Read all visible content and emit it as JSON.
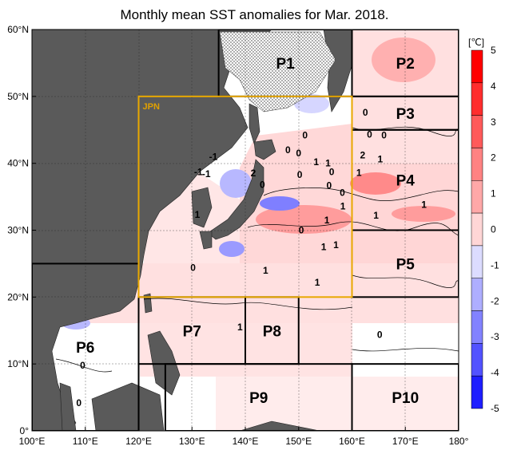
{
  "title": "Monthly mean SST anomalies for Mar. 2018.",
  "map": {
    "lon_range": [
      100,
      180
    ],
    "lat_range": [
      0,
      60
    ],
    "lon_ticks": [
      "100°E",
      "110°E",
      "120°E",
      "130°E",
      "140°E",
      "150°E",
      "160°E",
      "170°E",
      "180°"
    ],
    "lat_ticks": [
      "0°",
      "10°N",
      "20°N",
      "30°N",
      "40°N",
      "50°N",
      "60°N"
    ],
    "land_color": "#5a5a5a",
    "ocean_color": "#ffffff",
    "jpn_box_color": "#e8a800"
  },
  "regions": {
    "jpn": {
      "label": "JPN",
      "lon": [
        120,
        160
      ],
      "lat": [
        20,
        50
      ]
    },
    "areas": [
      {
        "label": "P1",
        "lon": [
          135,
          160
        ],
        "lat": [
          50,
          60
        ]
      },
      {
        "label": "P2",
        "lon": [
          160,
          180
        ],
        "lat": [
          50,
          60
        ]
      },
      {
        "label": "P3",
        "lon": [
          160,
          180
        ],
        "lat": [
          45,
          50
        ]
      },
      {
        "label": "P4",
        "lon": [
          160,
          180
        ],
        "lat": [
          30,
          45
        ]
      },
      {
        "label": "P5",
        "lon": [
          160,
          180
        ],
        "lat": [
          20,
          30
        ]
      },
      {
        "label": "P6",
        "lon": [
          100,
          120
        ],
        "lat": [
          0,
          25
        ]
      },
      {
        "label": "P7",
        "lon": [
          120,
          140
        ],
        "lat": [
          10,
          20
        ]
      },
      {
        "label": "P8",
        "lon": [
          140,
          150
        ],
        "lat": [
          10,
          20
        ]
      },
      {
        "label": "P9",
        "lon": [
          125,
          160
        ],
        "lat": [
          0,
          10
        ]
      },
      {
        "label": "P10",
        "lon": [
          160,
          180
        ],
        "lat": [
          0,
          10
        ]
      }
    ]
  },
  "contour_labels": [
    {
      "text": "-1",
      "lon": 134.0,
      "lat": 41.0
    },
    {
      "text": "-1",
      "lon": 131.2,
      "lat": 38.7
    },
    {
      "text": "-1",
      "lon": 132.7,
      "lat": 38.4
    },
    {
      "text": "0",
      "lon": 151.2,
      "lat": 44.2
    },
    {
      "text": "0",
      "lon": 148.0,
      "lat": 42.0
    },
    {
      "text": "0",
      "lon": 162.5,
      "lat": 47.6
    },
    {
      "text": "0",
      "lon": 163.3,
      "lat": 44.3
    },
    {
      "text": "0",
      "lon": 166.0,
      "lat": 44.2
    },
    {
      "text": "0",
      "lon": 150.0,
      "lat": 41.5
    },
    {
      "text": "0",
      "lon": 150.2,
      "lat": 38.3
    },
    {
      "text": "0",
      "lon": 143.2,
      "lat": 36.8
    },
    {
      "text": "0",
      "lon": 155.7,
      "lat": 36.7
    },
    {
      "text": "0",
      "lon": 156.2,
      "lat": 38.7
    },
    {
      "text": "0",
      "lon": 158.2,
      "lat": 35.6
    },
    {
      "text": "0",
      "lon": 150.5,
      "lat": 30.0
    },
    {
      "text": "0",
      "lon": 130.2,
      "lat": 24.4
    },
    {
      "text": "0",
      "lon": 109.5,
      "lat": 9.8
    },
    {
      "text": "0",
      "lon": 108.8,
      "lat": 4.2
    },
    {
      "text": "0",
      "lon": 165.2,
      "lat": 14.4
    },
    {
      "text": "2",
      "lon": 141.5,
      "lat": 38.5
    },
    {
      "text": "2",
      "lon": 162.0,
      "lat": 41.2
    },
    {
      "text": "1",
      "lon": 153.3,
      "lat": 40.2
    },
    {
      "text": "1",
      "lon": 155.5,
      "lat": 40.0
    },
    {
      "text": "1",
      "lon": 161.3,
      "lat": 38.6
    },
    {
      "text": "1",
      "lon": 165.3,
      "lat": 40.6
    },
    {
      "text": "1",
      "lon": 158.3,
      "lat": 33.6
    },
    {
      "text": "1",
      "lon": 155.3,
      "lat": 31.5
    },
    {
      "text": "1",
      "lon": 154.7,
      "lat": 27.5
    },
    {
      "text": "1",
      "lon": 157.0,
      "lat": 27.8
    },
    {
      "text": "1",
      "lon": 131.0,
      "lat": 32.3
    },
    {
      "text": "1",
      "lon": 164.5,
      "lat": 32.2
    },
    {
      "text": "1",
      "lon": 173.5,
      "lat": 33.8
    },
    {
      "text": "1",
      "lon": 143.8,
      "lat": 24.0
    },
    {
      "text": "1",
      "lon": 153.5,
      "lat": 22.2
    },
    {
      "text": "1",
      "lon": 139.0,
      "lat": 15.5
    }
  ],
  "colorbar": {
    "unit": "[℃]",
    "levels": [
      "5",
      "4",
      "3",
      "2",
      "1",
      "0",
      "-1",
      "-2",
      "-3",
      "-4",
      "-5"
    ],
    "colors": [
      "#ff0000",
      "#ff2d2d",
      "#ff5a5a",
      "#ff8282",
      "#ffa8a8",
      "#ffd6d6",
      "#dcdcff",
      "#aeaeff",
      "#8282ff",
      "#5252ff",
      "#1e1eff"
    ]
  }
}
